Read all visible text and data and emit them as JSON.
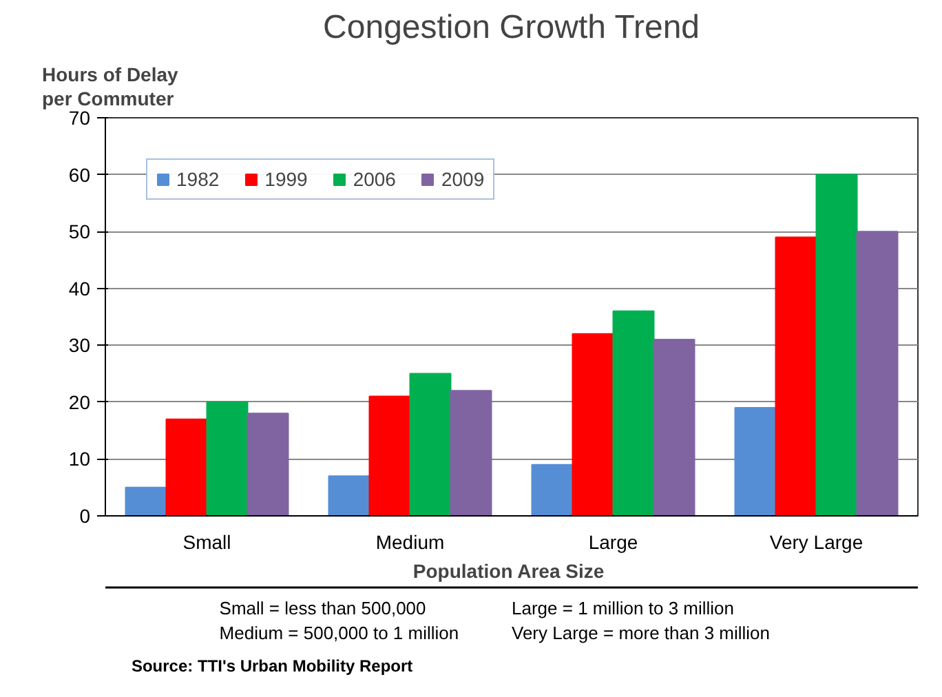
{
  "chart_data": {
    "type": "bar",
    "title": "Congestion Growth Trend",
    "ylabel": "Hours of Delay\nper Commuter",
    "xlabel": "Population  Area Size",
    "categories": [
      "Small",
      "Medium",
      "Large",
      "Very Large"
    ],
    "series": [
      {
        "name": "1982",
        "color": "#558ed5",
        "values": [
          5,
          7,
          9,
          19
        ]
      },
      {
        "name": "1999",
        "color": "#ff0000",
        "values": [
          17,
          21,
          32,
          49
        ]
      },
      {
        "name": "2006",
        "color": "#00b050",
        "values": [
          20,
          25,
          36,
          60
        ]
      },
      {
        "name": "2009",
        "color": "#8064a2",
        "values": [
          18,
          22,
          31,
          50
        ]
      }
    ],
    "ylim": [
      0,
      70
    ],
    "yticks": [
      0,
      10,
      20,
      30,
      40,
      50,
      60,
      70
    ],
    "grid": "y",
    "legend": "top left",
    "annotations": [
      "Small = less than 500,000",
      "Medium  = 500,000 to 1 million",
      "Large = 1 million to 3 million",
      "Very Large = more than 3 million",
      "Source: TTI's Urban Mobility Report"
    ]
  }
}
